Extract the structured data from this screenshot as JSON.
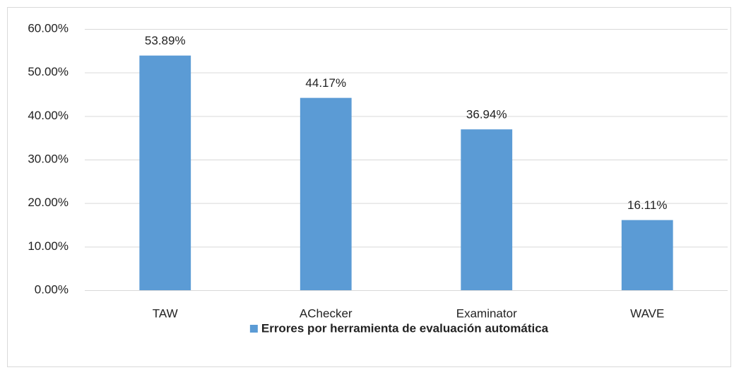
{
  "chart_data": {
    "type": "bar",
    "categories": [
      "TAW",
      "AChecker",
      "Examinator",
      "WAVE"
    ],
    "series": [
      {
        "name": "Errores por herramienta de evaluación automática",
        "color": "#5b9bd5",
        "values": [
          53.89,
          44.17,
          36.94,
          16.11
        ],
        "value_labels": [
          "53.89%",
          "44.17%",
          "36.94%",
          "16.11%"
        ]
      }
    ],
    "ylim": [
      0,
      60
    ],
    "yticks": [
      {
        "value": 0,
        "label": "0.00%"
      },
      {
        "value": 10,
        "label": "10.00%"
      },
      {
        "value": 20,
        "label": "20.00%"
      },
      {
        "value": 30,
        "label": "30.00%"
      },
      {
        "value": 40,
        "label": "40.00%"
      },
      {
        "value": 50,
        "label": "50.00%"
      },
      {
        "value": 60,
        "label": "60.00%"
      }
    ],
    "grid": true,
    "legend": "bottom"
  }
}
